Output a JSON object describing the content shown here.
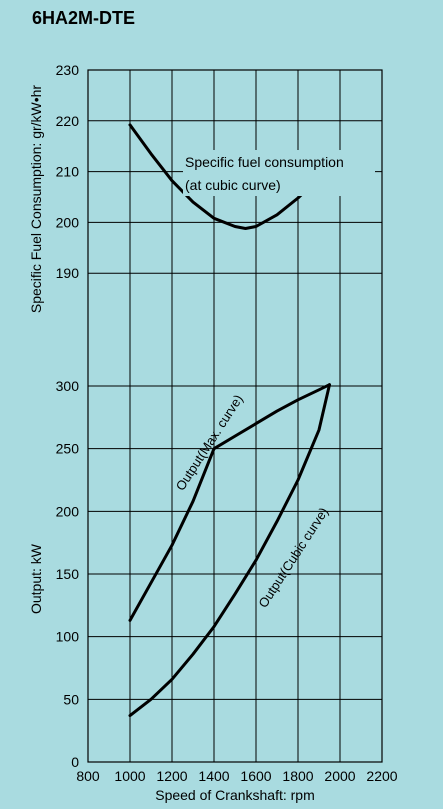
{
  "title": "6HA2M-DTE",
  "chart_data": [
    {
      "type": "line",
      "ylabel": "Specific Fuel Consumption: gr/kW•hr",
      "ylim": [
        180,
        230
      ],
      "yticks": [
        "190",
        "200",
        "210",
        "220",
        "230"
      ],
      "xlim": [
        800,
        2200
      ],
      "grid": true,
      "series": [
        {
          "name": "Specific fuel consumption",
          "name_line2": "(at cubic curve)",
          "x": [
            1000,
            1100,
            1200,
            1300,
            1400,
            1500,
            1550,
            1600,
            1700,
            1800,
            1900,
            1950
          ],
          "y": [
            219.2,
            213.5,
            208.2,
            204.0,
            200.8,
            199.2,
            198.8,
            199.2,
            201.5,
            204.8,
            208.8,
            211.0
          ]
        }
      ]
    },
    {
      "type": "line",
      "ylabel": "Output: kW",
      "ylim": [
        0,
        300
      ],
      "yticks": [
        "0",
        "50",
        "100",
        "150",
        "200",
        "250",
        "300"
      ],
      "xlim": [
        800,
        2200
      ],
      "xticks": [
        "800",
        "1000",
        "1200",
        "1400",
        "1600",
        "1800",
        "2000",
        "2200"
      ],
      "xlabel": "Speed of Crankshaft: rpm",
      "grid": true,
      "series": [
        {
          "name": "Output(Max. curve)",
          "x": [
            1000,
            1100,
            1200,
            1300,
            1400,
            1500,
            1600,
            1700,
            1800,
            1900,
            1950
          ],
          "y": [
            113,
            143,
            173,
            208,
            250,
            260,
            270,
            280,
            289,
            297,
            301
          ]
        },
        {
          "name": "Output(Cubic curve)",
          "x": [
            1000,
            1100,
            1200,
            1300,
            1400,
            1500,
            1600,
            1700,
            1800,
            1900,
            1950
          ],
          "y": [
            37,
            50,
            66,
            86,
            108,
            134,
            161,
            192,
            225,
            265,
            301
          ]
        }
      ]
    }
  ]
}
